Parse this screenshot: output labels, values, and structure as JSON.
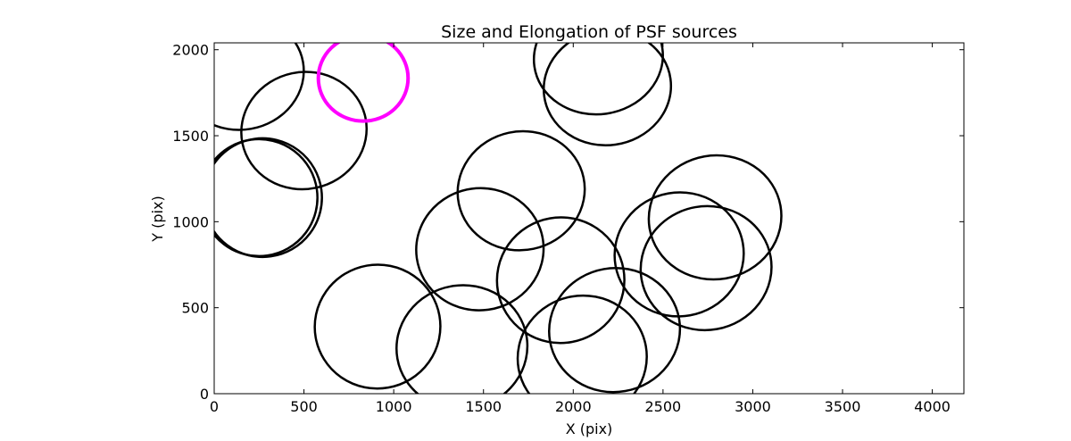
{
  "chart_data": {
    "type": "scatter",
    "title": "Size and Elongation of PSF sources",
    "xlabel": "X (pix)",
    "ylabel": "Y (pix)",
    "xlim": [
      0,
      4176
    ],
    "ylim": [
      0,
      2040
    ],
    "xticks": [
      0,
      500,
      1000,
      1500,
      2000,
      2500,
      3000,
      3500,
      4000
    ],
    "yticks": [
      0,
      500,
      1000,
      1500,
      2000
    ],
    "grid": false,
    "legend": "none",
    "colors": {
      "default": "#000000",
      "highlight": "#ff00ff"
    },
    "ellipses": [
      {
        "x": 150,
        "y": 1865,
        "w": 700,
        "h": 660,
        "angle": 10,
        "color": "#000000"
      },
      {
        "x": 500,
        "y": 1530,
        "w": 700,
        "h": 680,
        "angle": 12,
        "color": "#000000"
      },
      {
        "x": 270,
        "y": 1140,
        "w": 660,
        "h": 690,
        "angle": 8,
        "color": "#000000"
      },
      {
        "x": 250,
        "y": 1140,
        "w": 650,
        "h": 680,
        "angle": 8,
        "color": "#000000"
      },
      {
        "x": 830,
        "y": 1835,
        "w": 500,
        "h": 500,
        "angle": 0,
        "color": "#ff00ff",
        "highlight": true
      },
      {
        "x": 2140,
        "y": 1955,
        "w": 720,
        "h": 660,
        "angle": 8,
        "color": "#000000"
      },
      {
        "x": 2190,
        "y": 1780,
        "w": 710,
        "h": 670,
        "angle": 8,
        "color": "#000000"
      },
      {
        "x": 1710,
        "y": 1180,
        "w": 710,
        "h": 690,
        "angle": 12,
        "color": "#000000"
      },
      {
        "x": 1480,
        "y": 840,
        "w": 710,
        "h": 710,
        "angle": 8,
        "color": "#000000"
      },
      {
        "x": 910,
        "y": 390,
        "w": 700,
        "h": 720,
        "angle": 10,
        "color": "#000000"
      },
      {
        "x": 1380,
        "y": 270,
        "w": 730,
        "h": 720,
        "angle": 10,
        "color": "#000000"
      },
      {
        "x": 1930,
        "y": 660,
        "w": 710,
        "h": 730,
        "angle": 10,
        "color": "#000000"
      },
      {
        "x": 2050,
        "y": 210,
        "w": 720,
        "h": 720,
        "angle": 10,
        "color": "#000000"
      },
      {
        "x": 2230,
        "y": 370,
        "w": 730,
        "h": 720,
        "angle": 10,
        "color": "#000000"
      },
      {
        "x": 2590,
        "y": 810,
        "w": 720,
        "h": 720,
        "angle": 10,
        "color": "#000000"
      },
      {
        "x": 2740,
        "y": 730,
        "w": 730,
        "h": 720,
        "angle": 10,
        "color": "#000000"
      },
      {
        "x": 2790,
        "y": 1025,
        "w": 740,
        "h": 720,
        "angle": 10,
        "color": "#000000"
      }
    ]
  }
}
